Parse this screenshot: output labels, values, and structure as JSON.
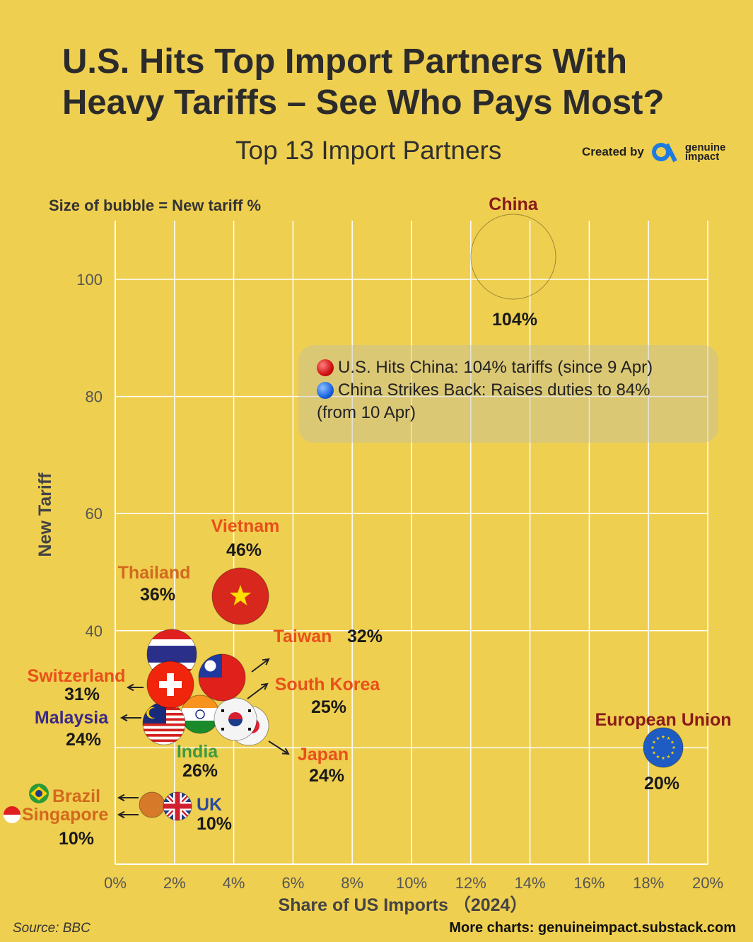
{
  "header": {
    "title": "U.S. Hits Top Import Partners With Heavy Tariffs – See Who Pays Most?",
    "subtitle": "Top 13 Import Partners",
    "created_by": "Created by",
    "brand_line1": "genuine",
    "brand_line2": "impact",
    "size_note": "Size of bubble = New tariff %"
  },
  "legend": {
    "line1": "U.S. Hits China: 104% tariffs (since 9 Apr)",
    "line2": "China Strikes Back: Raises duties to 84%",
    "line3": "(from 10 Apr)"
  },
  "footer": {
    "source": "Source: BBC",
    "more": "More charts: genuineimpact.substack.com"
  },
  "colors": {
    "background": "#EFCF50",
    "grid": "#FFFFFF",
    "label_red": "#E8501A",
    "label_dark_red": "#8A1A1A",
    "label_orange": "#D2691E",
    "label_purple": "#3C2A86",
    "label_green": "#3E9A3E",
    "label_blue": "#2E4A9E"
  },
  "chart_data": {
    "type": "scatter",
    "xlabel": "Share of US Imports （2024）",
    "ylabel": "New Tariff",
    "xlim": [
      0,
      20
    ],
    "ylim": [
      0,
      110
    ],
    "xticks": [
      "0%",
      "2%",
      "4%",
      "6%",
      "8%",
      "10%",
      "12%",
      "14%",
      "16%",
      "18%",
      "20%"
    ],
    "yticks": [
      "40",
      "60",
      "80",
      "100"
    ],
    "grid": true,
    "points": [
      {
        "name": "China",
        "x": 13.4,
        "y": 104,
        "tariff": "104%",
        "flag": "china"
      },
      {
        "name": "Vietnam",
        "x": 4.2,
        "y": 46,
        "tariff": "46%",
        "flag": "vietnam"
      },
      {
        "name": "Thailand",
        "x": 1.9,
        "y": 36,
        "tariff": "36%",
        "flag": "thailand"
      },
      {
        "name": "Taiwan",
        "x": 3.6,
        "y": 32,
        "tariff": "32%",
        "flag": "taiwan"
      },
      {
        "name": "Switzerland",
        "x": 1.9,
        "y": 31,
        "tariff": "31%",
        "flag": "switzerland"
      },
      {
        "name": "India",
        "x": 2.8,
        "y": 26,
        "tariff": "26%",
        "flag": "india"
      },
      {
        "name": "South Korea",
        "x": 4.0,
        "y": 25,
        "tariff": "25%",
        "flag": "southkorea"
      },
      {
        "name": "Malaysia",
        "x": 1.7,
        "y": 24,
        "tariff": "24%",
        "flag": "malaysia"
      },
      {
        "name": "Japan",
        "x": 4.5,
        "y": 24,
        "tariff": "24%",
        "flag": "japan"
      },
      {
        "name": "European Union",
        "x": 18.5,
        "y": 20,
        "tariff": "20%",
        "flag": "eu"
      },
      {
        "name": "Brazil",
        "x": 1.2,
        "y": 10,
        "tariff": "10%",
        "flag": "brazil"
      },
      {
        "name": "Singapore",
        "x": 1.2,
        "y": 10,
        "tariff": "10%",
        "flag": "singapore"
      },
      {
        "name": "UK",
        "x": 2.1,
        "y": 10,
        "tariff": "10%",
        "flag": "uk"
      }
    ]
  }
}
